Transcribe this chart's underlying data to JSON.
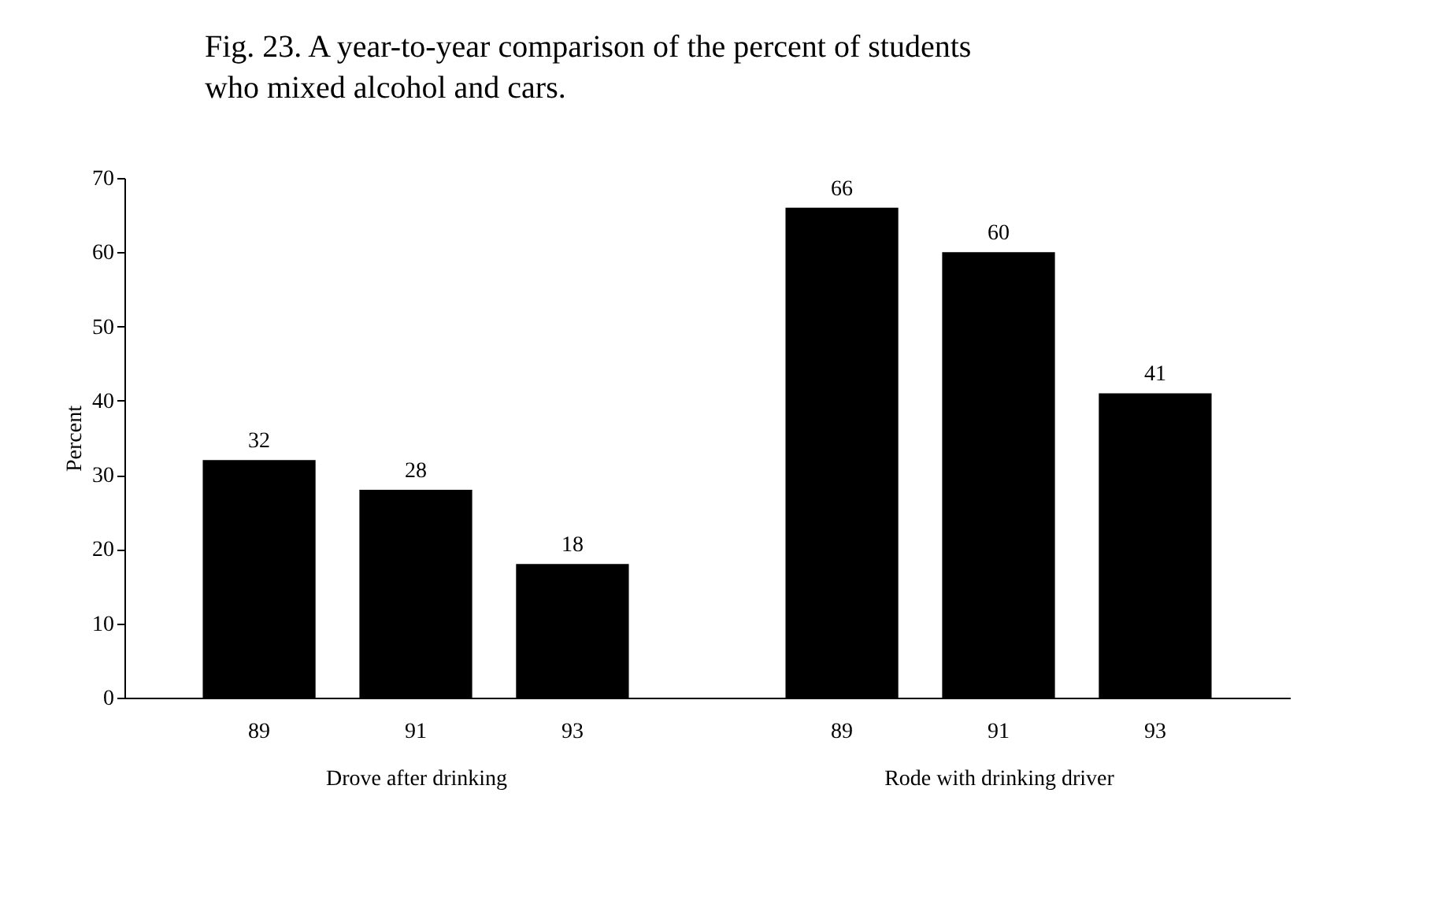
{
  "chart_data": [
    {
      "type": "bar",
      "title": "Fig. 23.  A year-to-year comparison of the percent of students who mixed alcohol and cars.",
      "xlabel": "Drove after drinking",
      "ylabel": "Percent",
      "categories": [
        "89",
        "91",
        "93"
      ],
      "values": [
        32,
        28,
        18
      ],
      "color": "#000000",
      "ylim": [
        0,
        70
      ],
      "yticks": [
        0,
        10,
        20,
        30,
        40,
        50,
        60,
        70
      ],
      "data_labels": true
    },
    {
      "type": "bar",
      "xlabel": "Rode with drinking driver",
      "categories": [
        "89",
        "91",
        "93"
      ],
      "values": [
        66,
        60,
        41
      ],
      "color": "#000000",
      "ylim": [
        0,
        70
      ],
      "yticks": [
        0,
        10,
        20,
        30,
        40,
        50,
        60,
        70
      ],
      "data_labels": true,
      "tick_labels": "x"
    }
  ]
}
